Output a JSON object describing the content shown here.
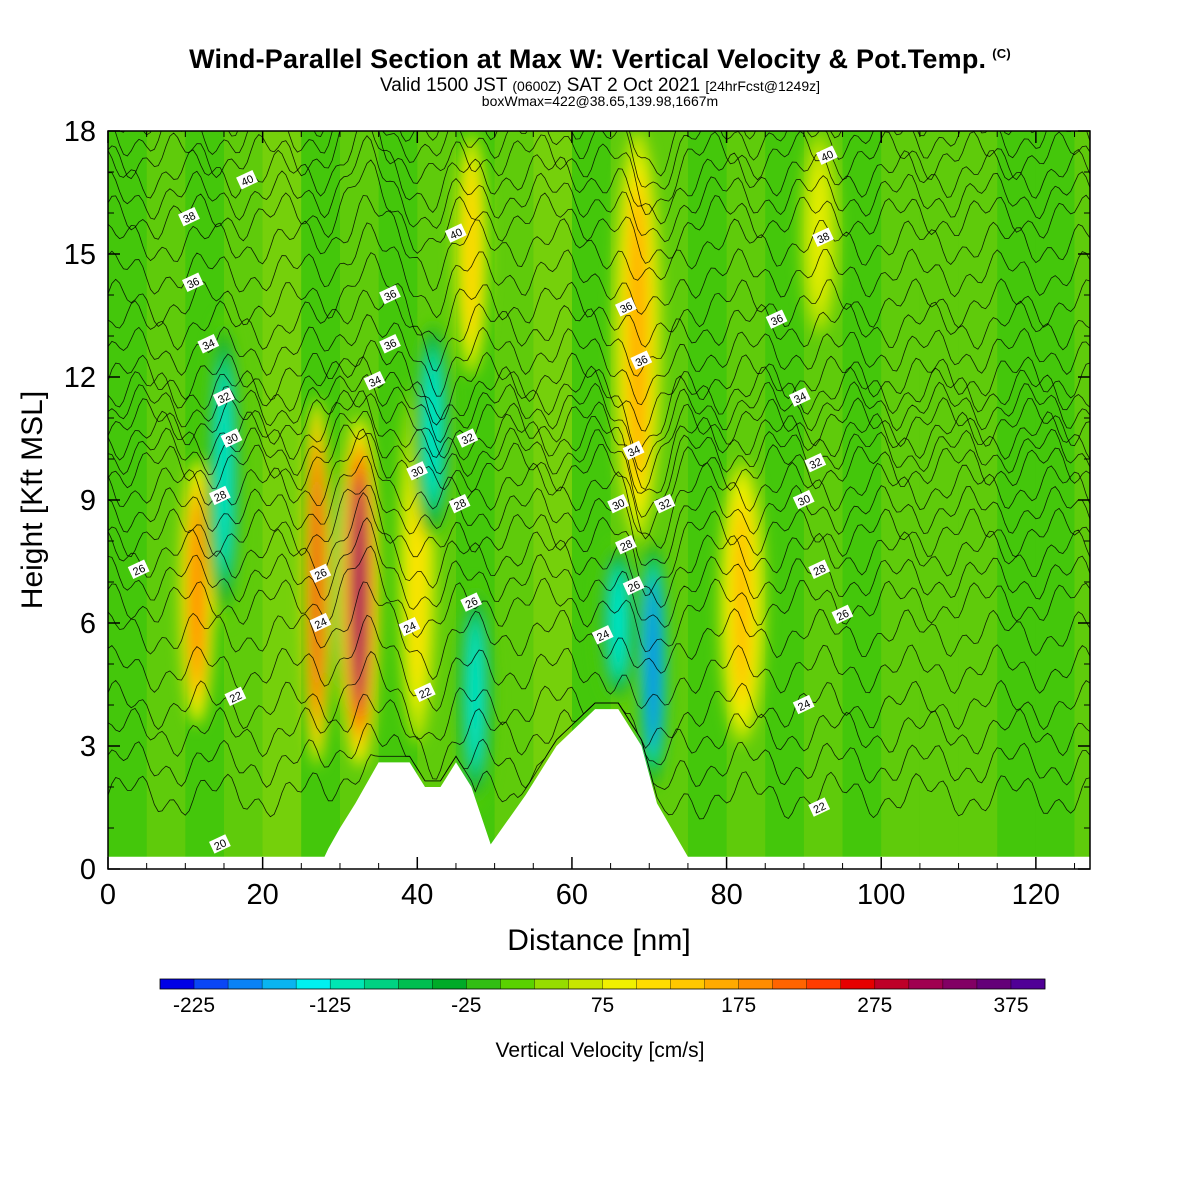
{
  "header": {
    "title": "Wind-Parallel Section at Max W: Vertical Velocity & Pot.Temp.",
    "title_mark": "(C)",
    "subtitle_a": "Valid 1500 JST",
    "subtitle_b": "(0600Z)",
    "subtitle_c": "SAT 2 Oct 2021",
    "subtitle_d": "[24hrFcst@1249z]",
    "subtitle2": "boxWmax=422@38.65,139.98,1667m"
  },
  "chart_data": {
    "type": "heatmap",
    "xlabel": "Distance [nm]",
    "ylabel": "Height [Kft MSL]",
    "xlim": [
      0,
      127
    ],
    "ylim": [
      0,
      18
    ],
    "x_ticks": [
      0,
      20,
      40,
      60,
      80,
      100,
      120
    ],
    "y_ticks": [
      0,
      3,
      6,
      9,
      12,
      15,
      18
    ],
    "colorbar": {
      "title": "Vertical Velocity [cm/s]",
      "tick_labels": [
        "-225",
        "-125",
        "-25",
        "75",
        "175",
        "275",
        "375"
      ],
      "tick_values": [
        -225,
        -125,
        -25,
        75,
        175,
        275,
        375
      ],
      "min": -250,
      "max": 400,
      "colors": [
        "#0000e6",
        "#0a46f5",
        "#0a82f5",
        "#0ab4f0",
        "#00f0f0",
        "#00e6b4",
        "#00d282",
        "#00be50",
        "#00aa28",
        "#32be14",
        "#5ad200",
        "#96dc00",
        "#c8e600",
        "#f0f000",
        "#ffdc00",
        "#ffc800",
        "#ffaa00",
        "#ff8c00",
        "#ff6400",
        "#ff3c00",
        "#e60000",
        "#be0028",
        "#a00050",
        "#820064",
        "#640078",
        "#500096"
      ]
    },
    "w_bands": [
      {
        "x": 11.5,
        "w": 1.6,
        "z0": 3.5,
        "z1": 10,
        "value": 220
      },
      {
        "x": 15,
        "w": 1.8,
        "z0": 6,
        "z1": 13.5,
        "value": -130
      },
      {
        "x": 27,
        "w": 1.3,
        "z0": 2.5,
        "z1": 11.5,
        "value": 275
      },
      {
        "x": 30.5,
        "w": 1.2,
        "z0": 4,
        "z1": 10,
        "value": -150
      },
      {
        "x": 32.5,
        "w": 1.8,
        "z0": 2.5,
        "z1": 11,
        "value": 350
      },
      {
        "x": 40,
        "w": 1.8,
        "z0": 3,
        "z1": 12,
        "value": 120
      },
      {
        "x": 42,
        "w": 2,
        "z0": 8,
        "z1": 13.5,
        "value": -140
      },
      {
        "x": 47.5,
        "w": 1.8,
        "z0": 1.5,
        "z1": 7,
        "value": -150
      },
      {
        "x": 47,
        "w": 1.6,
        "z0": 12,
        "z1": 18,
        "value": 130
      },
      {
        "x": 66,
        "w": 2,
        "z0": 4,
        "z1": 8,
        "value": -150
      },
      {
        "x": 70.5,
        "w": 1.4,
        "z0": 2,
        "z1": 8,
        "value": -225
      },
      {
        "x": 68.5,
        "w": 2.2,
        "z0": 8,
        "z1": 18,
        "value": 170
      },
      {
        "x": 82,
        "w": 2.2,
        "z0": 3,
        "z1": 10,
        "value": 150
      },
      {
        "x": 92,
        "w": 1.8,
        "z0": 13,
        "z1": 18,
        "value": 90
      }
    ],
    "terrain": [
      {
        "x": 0,
        "z": 0.3
      },
      {
        "x": 28,
        "z": 0.3
      },
      {
        "x": 28.5,
        "z": 0.5
      },
      {
        "x": 30,
        "z": 1
      },
      {
        "x": 32,
        "z": 1.6
      },
      {
        "x": 35,
        "z": 2.6
      },
      {
        "x": 39,
        "z": 2.6
      },
      {
        "x": 41,
        "z": 2
      },
      {
        "x": 43,
        "z": 2
      },
      {
        "x": 45,
        "z": 2.6
      },
      {
        "x": 47,
        "z": 2
      },
      {
        "x": 49.5,
        "z": 0.6
      },
      {
        "x": 54,
        "z": 1.8
      },
      {
        "x": 58,
        "z": 3
      },
      {
        "x": 63,
        "z": 3.9
      },
      {
        "x": 66,
        "z": 3.9
      },
      {
        "x": 69,
        "z": 3
      },
      {
        "x": 71,
        "z": 1.6
      },
      {
        "x": 75,
        "z": 0.3
      },
      {
        "x": 127,
        "z": 0.3
      }
    ],
    "isentropes": [
      {
        "label": "22",
        "base": 1.8
      },
      {
        "label": "24",
        "base": 4
      },
      {
        "label": "26",
        "base": 6.5
      },
      {
        "label": "28",
        "base": 8.2
      },
      {
        "label": "30",
        "base": 9.8
      },
      {
        "label": "32",
        "base": 10.9
      },
      {
        "label": "34",
        "base": 12
      },
      {
        "label": "36",
        "base": 13.8
      },
      {
        "label": "38",
        "base": 15.9
      },
      {
        "label": "40",
        "base": 17.4
      }
    ],
    "isentrope_labels": [
      {
        "text": "20",
        "x": 14.5,
        "z": 0.6
      },
      {
        "text": "22",
        "x": 16.5,
        "z": 4.2
      },
      {
        "text": "22",
        "x": 41,
        "z": 4.3
      },
      {
        "text": "22",
        "x": 92,
        "z": 1.5
      },
      {
        "text": "24",
        "x": 27.5,
        "z": 6
      },
      {
        "text": "24",
        "x": 39,
        "z": 5.9
      },
      {
        "text": "24",
        "x": 64,
        "z": 5.7
      },
      {
        "text": "24",
        "x": 90,
        "z": 4
      },
      {
        "text": "26",
        "x": 4,
        "z": 7.3
      },
      {
        "text": "26",
        "x": 27.5,
        "z": 7.2
      },
      {
        "text": "26",
        "x": 47,
        "z": 6.5
      },
      {
        "text": "26",
        "x": 68,
        "z": 6.9
      },
      {
        "text": "26",
        "x": 95,
        "z": 6.2
      },
      {
        "text": "28",
        "x": 14.5,
        "z": 9.1
      },
      {
        "text": "28",
        "x": 45.5,
        "z": 8.9
      },
      {
        "text": "28",
        "x": 67,
        "z": 7.9
      },
      {
        "text": "28",
        "x": 92,
        "z": 7.3
      },
      {
        "text": "30",
        "x": 16,
        "z": 10.5
      },
      {
        "text": "30",
        "x": 40,
        "z": 9.7
      },
      {
        "text": "30",
        "x": 66,
        "z": 8.9
      },
      {
        "text": "30",
        "x": 90,
        "z": 9
      },
      {
        "text": "32",
        "x": 15,
        "z": 11.5
      },
      {
        "text": "32",
        "x": 46.5,
        "z": 10.5
      },
      {
        "text": "32",
        "x": 72,
        "z": 8.9
      },
      {
        "text": "32",
        "x": 91.5,
        "z": 9.9
      },
      {
        "text": "34",
        "x": 13,
        "z": 12.8
      },
      {
        "text": "34",
        "x": 34.5,
        "z": 11.9
      },
      {
        "text": "34",
        "x": 68,
        "z": 10.2
      },
      {
        "text": "34",
        "x": 89.5,
        "z": 11.5
      },
      {
        "text": "36",
        "x": 11,
        "z": 14.3
      },
      {
        "text": "36",
        "x": 36.5,
        "z": 12.8
      },
      {
        "text": "36",
        "x": 36.5,
        "z": 14
      },
      {
        "text": "36",
        "x": 69,
        "z": 12.4
      },
      {
        "text": "36",
        "x": 86.5,
        "z": 13.4
      },
      {
        "text": "36",
        "x": 67,
        "z": 13.7
      },
      {
        "text": "38",
        "x": 10.5,
        "z": 15.9
      },
      {
        "text": "38",
        "x": 92.5,
        "z": 15.4
      },
      {
        "text": "40",
        "x": 18,
        "z": 16.8
      },
      {
        "text": "40",
        "x": 45,
        "z": 15.5
      },
      {
        "text": "40",
        "x": 93,
        "z": 17.4
      }
    ]
  }
}
